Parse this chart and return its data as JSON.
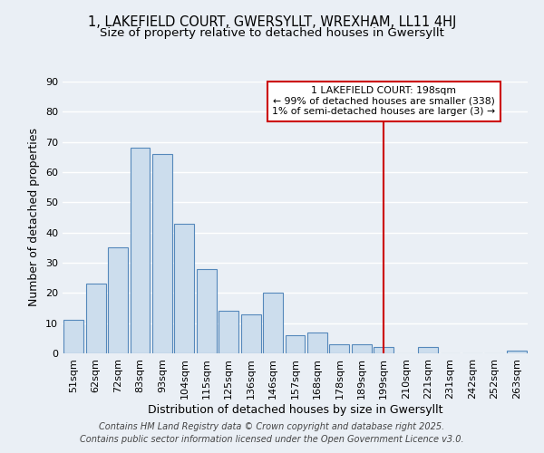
{
  "title_line1": "1, LAKEFIELD COURT, GWERSYLLT, WREXHAM, LL11 4HJ",
  "title_line2": "Size of property relative to detached houses in Gwersyllt",
  "xlabel": "Distribution of detached houses by size in Gwersyllt",
  "ylabel": "Number of detached properties",
  "categories": [
    "51sqm",
    "62sqm",
    "72sqm",
    "83sqm",
    "93sqm",
    "104sqm",
    "115sqm",
    "125sqm",
    "136sqm",
    "146sqm",
    "157sqm",
    "168sqm",
    "178sqm",
    "189sqm",
    "199sqm",
    "210sqm",
    "221sqm",
    "231sqm",
    "242sqm",
    "252sqm",
    "263sqm"
  ],
  "values": [
    11,
    23,
    35,
    68,
    66,
    43,
    28,
    14,
    13,
    20,
    6,
    7,
    3,
    3,
    2,
    0,
    2,
    0,
    0,
    0,
    1
  ],
  "bar_color": "#ccdded",
  "bar_edge_color": "#5588bb",
  "background_color": "#eaeff5",
  "grid_color": "#ffffff",
  "vline_index": 14,
  "vline_color": "#cc0000",
  "annotation_title": "1 LAKEFIELD COURT: 198sqm",
  "annotation_line2": "← 99% of detached houses are smaller (338)",
  "annotation_line3": "1% of semi-detached houses are larger (3) →",
  "annotation_box_color": "#cc0000",
  "ylim": [
    0,
    90
  ],
  "yticks": [
    0,
    10,
    20,
    30,
    40,
    50,
    60,
    70,
    80,
    90
  ],
  "footer_line1": "Contains HM Land Registry data © Crown copyright and database right 2025.",
  "footer_line2": "Contains public sector information licensed under the Open Government Licence v3.0.",
  "title_fontsize": 10.5,
  "subtitle_fontsize": 9.5,
  "axis_label_fontsize": 9,
  "tick_fontsize": 8,
  "footer_fontsize": 7
}
